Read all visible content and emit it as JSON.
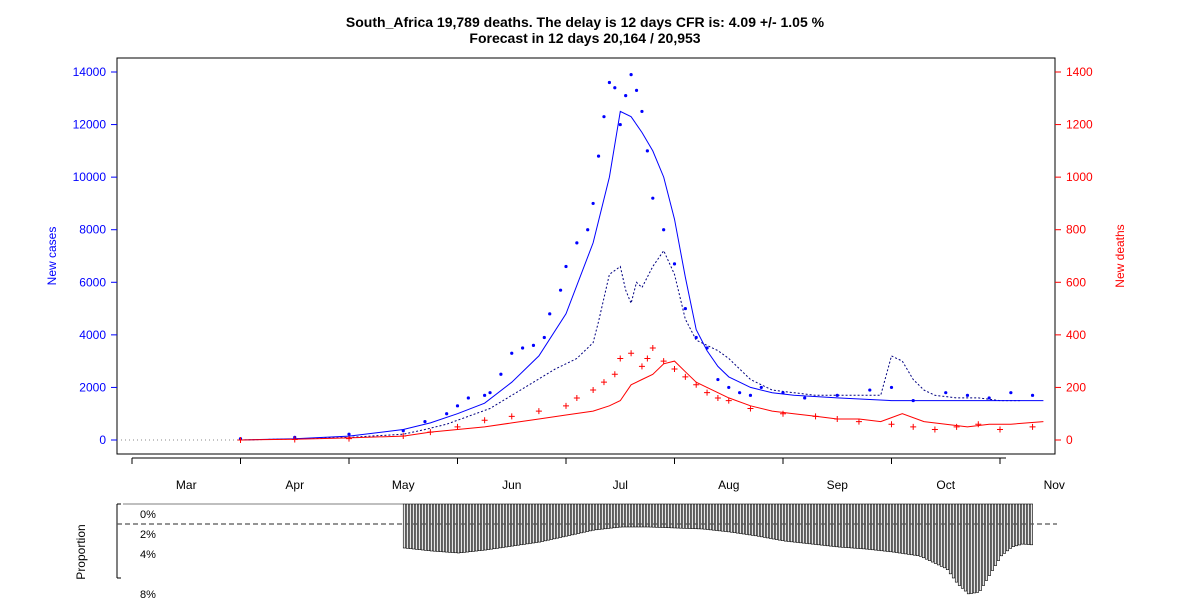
{
  "chart_data": {
    "type": "scatter",
    "title": "South_Africa 19,789 deaths. The delay is 12 days CFR is: 4.09 +/- 1.05 %",
    "subtitle": "Forecast in 12 days 20,164 / 20,953",
    "ylabel": "New cases",
    "y2label": "New deaths",
    "ylim": [
      0,
      14000
    ],
    "y2lim": [
      0,
      1400
    ],
    "yticks": [
      "0",
      "2000",
      "4000",
      "6000",
      "8000",
      "10000",
      "12000",
      "14000"
    ],
    "y2ticks": [
      "0",
      "200",
      "400",
      "600",
      "800",
      "1000",
      "1200",
      "1400"
    ],
    "xticks": [
      "Mar",
      "Apr",
      "May",
      "Jun",
      "Jul",
      "Aug",
      "Sep",
      "Oct",
      "Nov"
    ],
    "x_month_positions": [
      1,
      2,
      3,
      4,
      5,
      6,
      7,
      8,
      9
    ],
    "colors": {
      "cases": "#0000ff",
      "deaths": "#ff0000",
      "forecast": "#000080",
      "bars": "#000000"
    },
    "series": [
      {
        "name": "cases_daily",
        "x": [
          1.5,
          2.0,
          2.5,
          3.0,
          3.2,
          3.4,
          3.5,
          3.6,
          3.75,
          3.8,
          3.9,
          4.0,
          4.1,
          4.2,
          4.3,
          4.35,
          4.45,
          4.5,
          4.6,
          4.7,
          4.75,
          4.8,
          4.85,
          4.9,
          4.95,
          5.0,
          5.05,
          5.1,
          5.15,
          5.2,
          5.25,
          5.3,
          5.4,
          5.5,
          5.6,
          5.7,
          5.8,
          5.9,
          6.0,
          6.1,
          6.2,
          6.3,
          6.5,
          6.7,
          7.0,
          7.3,
          7.5,
          7.7,
          8.0,
          8.2,
          8.4,
          8.6,
          8.8
        ],
        "values": [
          50,
          100,
          220,
          350,
          700,
          1000,
          1300,
          1600,
          1700,
          1800,
          2500,
          3300,
          3500,
          3600,
          3900,
          4800,
          5700,
          6600,
          7500,
          8000,
          9000,
          10800,
          12300,
          13600,
          13400,
          12000,
          13100,
          13900,
          13300,
          12500,
          11000,
          9200,
          8000,
          6700,
          5000,
          3900,
          3500,
          2300,
          2000,
          1800,
          1700,
          2000,
          1800,
          1600,
          1700,
          1900,
          2000,
          1500,
          1800,
          1700,
          1600,
          1800,
          1700
        ]
      },
      {
        "name": "cases_smooth",
        "x": [
          1.5,
          2.0,
          2.5,
          3.0,
          3.25,
          3.5,
          3.75,
          4.0,
          4.25,
          4.5,
          4.75,
          4.9,
          5.0,
          5.1,
          5.2,
          5.3,
          5.4,
          5.5,
          5.6,
          5.7,
          5.8,
          5.9,
          6.0,
          6.2,
          6.4,
          6.6,
          7.0,
          7.5,
          8.0,
          8.5,
          8.9
        ],
        "values": [
          0,
          50,
          150,
          400,
          650,
          1000,
          1400,
          2200,
          3200,
          4800,
          7500,
          10000,
          12500,
          12300,
          11700,
          11000,
          10000,
          8400,
          6200,
          4200,
          3400,
          2800,
          2400,
          2000,
          1800,
          1700,
          1600,
          1500,
          1500,
          1500,
          1500
        ]
      },
      {
        "name": "forecast",
        "x": [
          1.5,
          2.0,
          2.5,
          3.0,
          3.2,
          3.4,
          3.6,
          3.8,
          4.0,
          4.2,
          4.4,
          4.6,
          4.75,
          4.8,
          4.9,
          5.0,
          5.05,
          5.1,
          5.15,
          5.2,
          5.3,
          5.4,
          5.5,
          5.6,
          5.7,
          5.8,
          5.9,
          6.0,
          6.2,
          6.4,
          6.6,
          6.8,
          7.0,
          7.2,
          7.4,
          7.5,
          7.6,
          7.7,
          7.8,
          7.9,
          8.1,
          8.3,
          8.5,
          8.7
        ],
        "values": [
          0,
          40,
          100,
          220,
          400,
          600,
          900,
          1200,
          1700,
          2200,
          2700,
          3100,
          3700,
          4500,
          6300,
          6600,
          5700,
          5200,
          6000,
          5800,
          6600,
          7200,
          6300,
          4600,
          3800,
          3600,
          3400,
          3100,
          2300,
          1900,
          1800,
          1700,
          1700,
          1700,
          1700,
          3200,
          3000,
          2300,
          1900,
          1700,
          1600,
          1600,
          1500,
          1500
        ]
      },
      {
        "name": "deaths_daily",
        "x": [
          1.5,
          2.0,
          2.5,
          3.0,
          3.25,
          3.5,
          3.75,
          4.0,
          4.25,
          4.5,
          4.6,
          4.75,
          4.85,
          4.95,
          5.0,
          5.1,
          5.2,
          5.25,
          5.3,
          5.4,
          5.5,
          5.6,
          5.7,
          5.8,
          5.9,
          6.0,
          6.2,
          6.5,
          6.8,
          7.0,
          7.2,
          7.5,
          7.7,
          7.9,
          8.1,
          8.3,
          8.5,
          8.8
        ],
        "values": [
          0,
          2,
          5,
          15,
          30,
          50,
          75,
          90,
          110,
          130,
          160,
          190,
          220,
          250,
          310,
          330,
          280,
          310,
          350,
          300,
          270,
          240,
          210,
          180,
          160,
          150,
          120,
          100,
          90,
          80,
          70,
          60,
          50,
          40,
          50,
          60,
          40,
          50
        ]
      },
      {
        "name": "deaths_smooth",
        "x": [
          1.5,
          2.0,
          2.5,
          3.0,
          3.25,
          3.5,
          3.75,
          4.0,
          4.25,
          4.5,
          4.75,
          4.9,
          5.0,
          5.1,
          5.2,
          5.3,
          5.4,
          5.5,
          5.6,
          5.7,
          5.8,
          5.9,
          6.0,
          6.2,
          6.4,
          6.6,
          6.8,
          7.0,
          7.2,
          7.4,
          7.6,
          7.8,
          8.0,
          8.2,
          8.4,
          8.6,
          8.9
        ],
        "values": [
          0,
          3,
          8,
          15,
          30,
          40,
          50,
          65,
          80,
          95,
          110,
          130,
          150,
          210,
          230,
          250,
          290,
          300,
          260,
          220,
          200,
          180,
          160,
          130,
          110,
          100,
          90,
          80,
          80,
          70,
          100,
          70,
          60,
          50,
          60,
          60,
          70
        ]
      },
      {
        "name": "proportion",
        "x_start": 3.0,
        "x_end": 8.8,
        "x": [
          3.0,
          3.25,
          3.5,
          3.75,
          4.0,
          4.25,
          4.5,
          4.75,
          5.0,
          5.25,
          5.5,
          5.75,
          6.0,
          6.25,
          6.5,
          6.75,
          7.0,
          7.25,
          7.5,
          7.75,
          8.0,
          8.1,
          8.2,
          8.3,
          8.4,
          8.5,
          8.6,
          8.7,
          8.8
        ],
        "values": [
          3.4,
          3.7,
          3.9,
          3.6,
          3.2,
          2.8,
          2.2,
          1.6,
          1.3,
          1.3,
          1.4,
          1.5,
          1.8,
          2.2,
          2.7,
          3.0,
          3.3,
          3.5,
          3.8,
          4.2,
          5.5,
          7.0,
          8.0,
          7.8,
          6.0,
          4.2,
          3.3,
          3.0,
          3.1
        ]
      }
    ],
    "proportion_ylabel": "Proportion",
    "proportion_ticks": [
      "0%",
      "2%",
      "4%",
      "8%"
    ],
    "proportion_reference": 1.0
  }
}
